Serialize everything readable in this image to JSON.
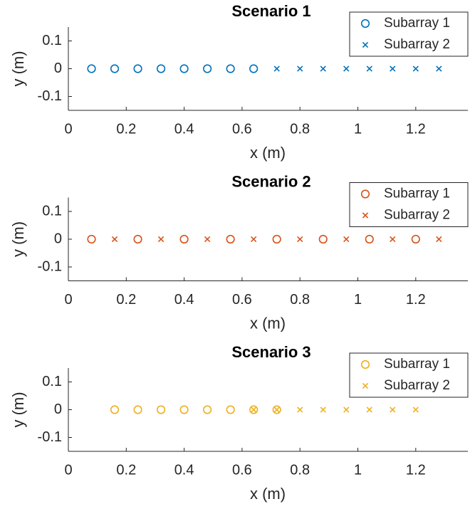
{
  "chart_data": [
    {
      "type": "scatter",
      "title": "Scenario 1",
      "x_label": "x (m)",
      "y_label": "y (m)",
      "xlim": [
        0,
        1.38
      ],
      "ylim": [
        -0.15,
        0.15
      ],
      "xticks": [
        0,
        0.2,
        0.4,
        0.6,
        0.8,
        1,
        1.2
      ],
      "yticks": [
        -0.1,
        0,
        0.1
      ],
      "legend": "northeast",
      "series": [
        {
          "name": "Subarray 1",
          "color": "#0072BD",
          "marker": "o",
          "x": [
            0.08,
            0.16,
            0.24,
            0.32,
            0.4,
            0.48,
            0.56,
            0.64
          ],
          "values": [
            0,
            0,
            0,
            0,
            0,
            0,
            0,
            0
          ]
        },
        {
          "name": "Subarray 2",
          "color": "#0072BD",
          "marker": "x",
          "x": [
            0.72,
            0.8,
            0.88,
            0.96,
            1.04,
            1.12,
            1.2,
            1.28
          ],
          "values": [
            0,
            0,
            0,
            0,
            0,
            0,
            0,
            0
          ]
        }
      ]
    },
    {
      "type": "scatter",
      "title": "Scenario 2",
      "x_label": "x (m)",
      "y_label": "y (m)",
      "xlim": [
        0,
        1.38
      ],
      "ylim": [
        -0.15,
        0.15
      ],
      "xticks": [
        0,
        0.2,
        0.4,
        0.6,
        0.8,
        1,
        1.2
      ],
      "yticks": [
        -0.1,
        0,
        0.1
      ],
      "legend": "northeast",
      "series": [
        {
          "name": "Subarray 1",
          "color": "#D95319",
          "marker": "o",
          "x": [
            0.08,
            0.24,
            0.4,
            0.56,
            0.72,
            0.88,
            1.04,
            1.2
          ],
          "values": [
            0,
            0,
            0,
            0,
            0,
            0,
            0,
            0
          ]
        },
        {
          "name": "Subarray 2",
          "color": "#D95319",
          "marker": "x",
          "x": [
            0.16,
            0.32,
            0.48,
            0.64,
            0.8,
            0.96,
            1.12,
            1.28
          ],
          "values": [
            0,
            0,
            0,
            0,
            0,
            0,
            0,
            0
          ]
        }
      ]
    },
    {
      "type": "scatter",
      "title": "Scenario 3",
      "x_label": "x (m)",
      "y_label": "y (m)",
      "xlim": [
        0,
        1.38
      ],
      "ylim": [
        -0.15,
        0.15
      ],
      "xticks": [
        0,
        0.2,
        0.4,
        0.6,
        0.8,
        1,
        1.2
      ],
      "yticks": [
        -0.1,
        0,
        0.1
      ],
      "legend": "northeast",
      "series": [
        {
          "name": "Subarray 1",
          "color": "#EDB120",
          "marker": "o",
          "x": [
            0.16,
            0.24,
            0.32,
            0.4,
            0.48,
            0.56,
            0.64,
            0.72
          ],
          "values": [
            0,
            0,
            0,
            0,
            0,
            0,
            0,
            0
          ]
        },
        {
          "name": "Subarray 2",
          "color": "#EDB120",
          "marker": "x",
          "x": [
            0.64,
            0.72,
            0.8,
            0.88,
            0.96,
            1.04,
            1.12,
            1.2
          ],
          "values": [
            0,
            0,
            0,
            0,
            0,
            0,
            0,
            0
          ]
        }
      ]
    }
  ]
}
